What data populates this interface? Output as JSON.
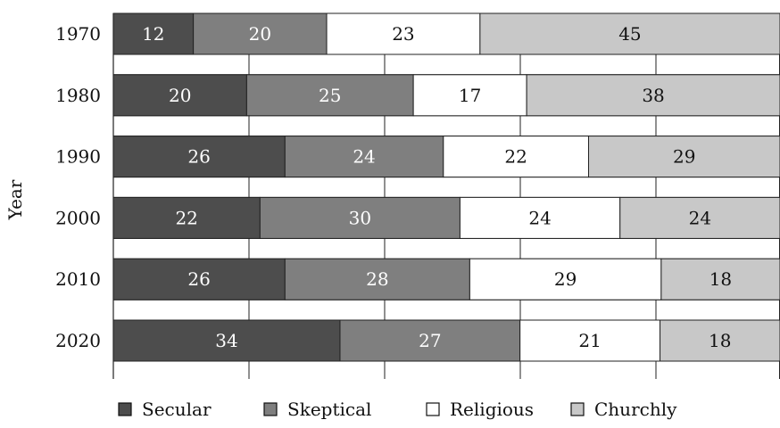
{
  "chart_data": {
    "type": "bar",
    "orientation": "horizontal",
    "stacked": true,
    "ylabel": "Year",
    "xlabel": "",
    "categories": [
      "1970",
      "1980",
      "1990",
      "2000",
      "2010",
      "2020"
    ],
    "series": [
      {
        "name": "Secular",
        "values": [
          12,
          20,
          26,
          22,
          26,
          34
        ],
        "color": "#4d4d4d",
        "label_color": "#ffffff"
      },
      {
        "name": "Skeptical",
        "values": [
          20,
          25,
          24,
          30,
          28,
          27
        ],
        "color": "#7f7f7f",
        "label_color": "#ffffff"
      },
      {
        "name": "Religious",
        "values": [
          23,
          17,
          22,
          24,
          29,
          21
        ],
        "color": "#ffffff",
        "label_color": "#111111"
      },
      {
        "name": "Churchly",
        "values": [
          45,
          38,
          29,
          24,
          18,
          18
        ],
        "color": "#c8c8c8",
        "label_color": "#111111"
      }
    ],
    "grid": true,
    "legend_position": "bottom"
  }
}
